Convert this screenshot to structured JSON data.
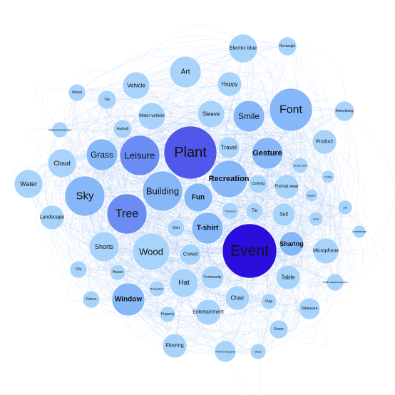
{
  "graph": {
    "colors": {
      "edge": "#8fb7ef",
      "node_scale": [
        "#a8d4fb",
        "#86b7f8",
        "#6a8cf3",
        "#4f58ea",
        "#2a0fdc"
      ]
    },
    "nodes": [
      {
        "id": "plant",
        "label": "Plant",
        "level": 4
      },
      {
        "id": "event",
        "label": "Event",
        "level": 5
      },
      {
        "id": "font",
        "label": "Font",
        "level": 2
      },
      {
        "id": "leisure",
        "label": "Leisure",
        "level": 3
      },
      {
        "id": "tree",
        "label": "Tree",
        "level": 3
      },
      {
        "id": "sky",
        "label": "Sky",
        "level": 2
      },
      {
        "id": "building",
        "label": "Building",
        "level": 2
      },
      {
        "id": "grass",
        "label": "Grass",
        "level": 2
      },
      {
        "id": "smile",
        "label": "Smile",
        "level": 2
      },
      {
        "id": "gesture",
        "label": "Gesture",
        "level": 2
      },
      {
        "id": "recreation",
        "label": "Recreation",
        "level": 2
      },
      {
        "id": "fun",
        "label": "Fun",
        "level": 2
      },
      {
        "id": "tshirt",
        "label": "T-shirt",
        "level": 2
      },
      {
        "id": "wood",
        "label": "Wood",
        "level": 1
      },
      {
        "id": "window",
        "label": "Window",
        "level": 2
      },
      {
        "id": "art",
        "label": "Art",
        "level": 1
      },
      {
        "id": "sharing",
        "label": "Sharing",
        "level": 2
      },
      {
        "id": "hat",
        "label": "Hat",
        "level": 1
      },
      {
        "id": "shorts",
        "label": "Shorts",
        "level": 1
      },
      {
        "id": "cloud",
        "label": "Cloud",
        "level": 1
      },
      {
        "id": "water",
        "label": "Water",
        "level": 1
      },
      {
        "id": "landscape",
        "label": "Landscape",
        "level": 1
      },
      {
        "id": "vehicle",
        "label": "Vehicle",
        "level": 1
      },
      {
        "id": "happy",
        "label": "Happy",
        "level": 1
      },
      {
        "id": "electric_blue",
        "label": "Electric blue",
        "level": 1
      },
      {
        "id": "rectangle",
        "label": "Rectangle",
        "level": 1
      },
      {
        "id": "sleeve",
        "label": "Sleeve",
        "level": 1
      },
      {
        "id": "travel",
        "label": "Travel",
        "level": 1
      },
      {
        "id": "product",
        "label": "Product",
        "level": 1
      },
      {
        "id": "advertising",
        "label": "Advertising",
        "level": 1
      },
      {
        "id": "suit",
        "label": "Suit",
        "level": 1
      },
      {
        "id": "table",
        "label": "Table",
        "level": 1
      },
      {
        "id": "microphone",
        "label": "Microphone",
        "level": 1
      },
      {
        "id": "entertainment",
        "label": "Entertainment",
        "level": 1
      },
      {
        "id": "chair",
        "label": "Chair",
        "level": 1
      },
      {
        "id": "flooring",
        "label": "Flooring",
        "level": 1
      },
      {
        "id": "crowd",
        "label": "Crowd",
        "level": 1
      },
      {
        "id": "community",
        "label": "Community",
        "level": 1
      },
      {
        "id": "wheel",
        "label": "Wheel",
        "level": 1
      },
      {
        "id": "tire",
        "label": "Tire",
        "level": 1
      },
      {
        "id": "motor_vehicle",
        "label": "Motor vehicle",
        "level": 1
      },
      {
        "id": "asphalt",
        "label": "Asphalt",
        "level": 1
      },
      {
        "id": "natural_landscape",
        "label": "Natural landscape",
        "level": 1
      },
      {
        "id": "clothing",
        "label": "Clothing",
        "level": 1
      },
      {
        "id": "formal_wear",
        "label": "Formal wear",
        "level": 1
      },
      {
        "id": "dress_shirt",
        "label": "Dress shirt",
        "level": 1
      },
      {
        "id": "trousers",
        "label": "Trousers",
        "level": 1
      },
      {
        "id": "tie",
        "label": "Tie",
        "level": 1
      },
      {
        "id": "coat",
        "label": "Coat",
        "level": 1
      },
      {
        "id": "blazer",
        "label": "Blazer",
        "level": 1
      },
      {
        "id": "collar",
        "label": "Collar",
        "level": 1
      },
      {
        "id": "jolt",
        "label": "Jolt",
        "level": 1
      },
      {
        "id": "shirt",
        "label": "Shirt",
        "level": 1
      },
      {
        "id": "city",
        "label": "City",
        "level": 1
      },
      {
        "id": "house",
        "label": "House",
        "level": 1
      },
      {
        "id": "fixture",
        "label": "Fixture",
        "level": 1
      },
      {
        "id": "relaxation",
        "label": "Relaxation",
        "level": 1
      },
      {
        "id": "property",
        "label": "Property",
        "level": 1
      },
      {
        "id": "flag",
        "label": "Flag",
        "level": 1
      },
      {
        "id": "room",
        "label": "Room",
        "level": 1
      },
      {
        "id": "tableware",
        "label": "Tableware",
        "level": 1
      },
      {
        "id": "public_address_system",
        "label": "Public address system",
        "level": 1
      },
      {
        "id": "performing_arts",
        "label": "Performing arts",
        "level": 1
      },
      {
        "id": "music",
        "label": "Music",
        "level": 1
      },
      {
        "id": "hairstyle_tiny",
        "label": "Leaderboard",
        "level": 1
      }
    ]
  }
}
